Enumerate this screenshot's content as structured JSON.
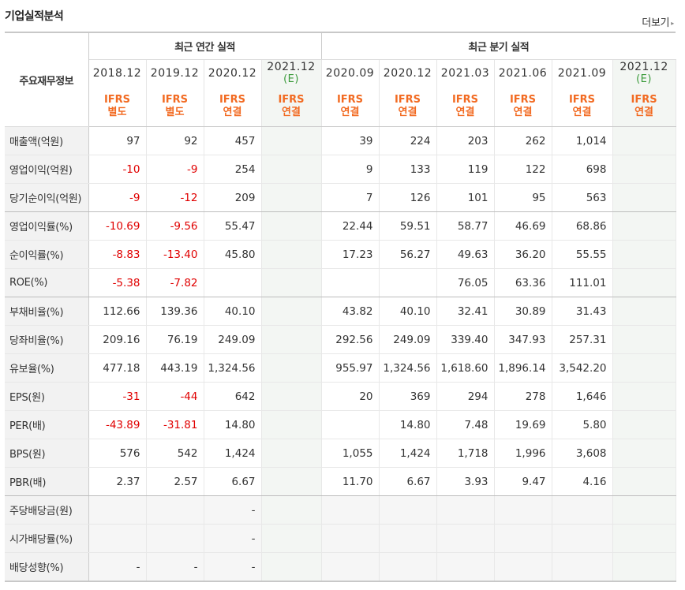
{
  "title": "기업실적분석",
  "more_label": "더보기",
  "more_arrow": "▸",
  "row_header": "주요재무정보",
  "groups": {
    "annual": "최근 연간 실적",
    "quarterly": "최근 분기 실적"
  },
  "periods": [
    "2018.12",
    "2019.12",
    "2020.12",
    "2021.12",
    "2020.09",
    "2020.12",
    "2021.03",
    "2021.06",
    "2021.09",
    "2021.12"
  ],
  "estimate_mark": "(E)",
  "types": [
    [
      "IFRS",
      "별도"
    ],
    [
      "IFRS",
      "별도"
    ],
    [
      "IFRS",
      "연결"
    ],
    [
      "IFRS",
      "연결"
    ],
    [
      "IFRS",
      "연결"
    ],
    [
      "IFRS",
      "연결"
    ],
    [
      "IFRS",
      "연결"
    ],
    [
      "IFRS",
      "연결"
    ],
    [
      "IFRS",
      "연결"
    ],
    [
      "IFRS",
      "연결"
    ]
  ],
  "rows": [
    {
      "label": "매출액(억원)",
      "values": [
        "97",
        "92",
        "457",
        "",
        "39",
        "224",
        "203",
        "262",
        "1,014",
        ""
      ]
    },
    {
      "label": "영업이익(억원)",
      "values": [
        "-10",
        "-9",
        "254",
        "",
        "9",
        "133",
        "119",
        "122",
        "698",
        ""
      ]
    },
    {
      "label": "당기순이익(억원)",
      "values": [
        "-9",
        "-12",
        "209",
        "",
        "7",
        "126",
        "101",
        "95",
        "563",
        ""
      ]
    },
    {
      "label": "영업이익률(%)",
      "values": [
        "-10.69",
        "-9.56",
        "55.47",
        "",
        "22.44",
        "59.51",
        "58.77",
        "46.69",
        "68.86",
        ""
      ]
    },
    {
      "label": "순이익률(%)",
      "values": [
        "-8.83",
        "-13.40",
        "45.80",
        "",
        "17.23",
        "56.27",
        "49.63",
        "36.20",
        "55.55",
        ""
      ]
    },
    {
      "label": "ROE(%)",
      "values": [
        "-5.38",
        "-7.82",
        "",
        "",
        "",
        "",
        "76.05",
        "63.36",
        "111.01",
        ""
      ]
    },
    {
      "label": "부채비율(%)",
      "values": [
        "112.66",
        "139.36",
        "40.10",
        "",
        "43.82",
        "40.10",
        "32.41",
        "30.89",
        "31.43",
        ""
      ]
    },
    {
      "label": "당좌비율(%)",
      "values": [
        "209.16",
        "76.19",
        "249.09",
        "",
        "292.56",
        "249.09",
        "339.40",
        "347.93",
        "257.31",
        ""
      ]
    },
    {
      "label": "유보율(%)",
      "values": [
        "477.18",
        "443.19",
        "1,324.56",
        "",
        "955.97",
        "1,324.56",
        "1,618.60",
        "1,896.14",
        "3,542.20",
        ""
      ]
    },
    {
      "label": "EPS(원)",
      "values": [
        "-31",
        "-44",
        "642",
        "",
        "20",
        "369",
        "294",
        "278",
        "1,646",
        ""
      ]
    },
    {
      "label": "PER(배)",
      "values": [
        "-43.89",
        "-31.81",
        "14.80",
        "",
        "",
        "14.80",
        "7.48",
        "19.69",
        "5.80",
        ""
      ]
    },
    {
      "label": "BPS(원)",
      "values": [
        "576",
        "542",
        "1,424",
        "",
        "1,055",
        "1,424",
        "1,718",
        "1,996",
        "3,608",
        ""
      ]
    },
    {
      "label": "PBR(배)",
      "values": [
        "2.37",
        "2.57",
        "6.67",
        "",
        "11.70",
        "6.67",
        "3.93",
        "9.47",
        "4.16",
        ""
      ]
    },
    {
      "label": "주당배당금(원)",
      "values": [
        "",
        "",
        "-",
        "",
        "",
        "",
        "",
        "",
        "",
        ""
      ]
    },
    {
      "label": "시가배당률(%)",
      "values": [
        "",
        "",
        "-",
        "",
        "",
        "",
        "",
        "",
        "",
        ""
      ]
    },
    {
      "label": "배당성향(%)",
      "values": [
        "-",
        "-",
        "-",
        "",
        "",
        "",
        "",
        "",
        "",
        ""
      ]
    }
  ],
  "colors": {
    "negative": "#e00000",
    "ifrs": "#f26a21",
    "estimate": "#3a9a3a"
  }
}
